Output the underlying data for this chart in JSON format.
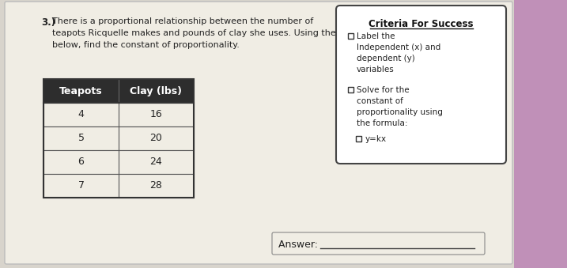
{
  "title_number": "3.)",
  "title_text": "There is a proportional relationship between the number of\nteapots Ricquelle makes and pounds of clay she uses. Using the table\nbelow, find the constant of proportionality.",
  "table_header": [
    "Teapots",
    "Clay (lbs)"
  ],
  "table_data": [
    [
      4,
      16
    ],
    [
      5,
      20
    ],
    [
      6,
      24
    ],
    [
      7,
      28
    ]
  ],
  "criteria_title": "Criteria For Success",
  "criteria_item1": "Label the\nIndependent (x) and\ndependent (y)\nvariables",
  "criteria_item2": "Solve for the\nconstant of\nproportionality using\nthe formula:",
  "criteria_formula": "□  y=kx",
  "answer_label": "Answer: ",
  "bg_color": "#d8d4cc",
  "table_header_bg": "#2d2d2d",
  "table_header_text": "#ffffff",
  "criteria_box_bg": "#ffffff",
  "paper_color": "#f0ede4"
}
